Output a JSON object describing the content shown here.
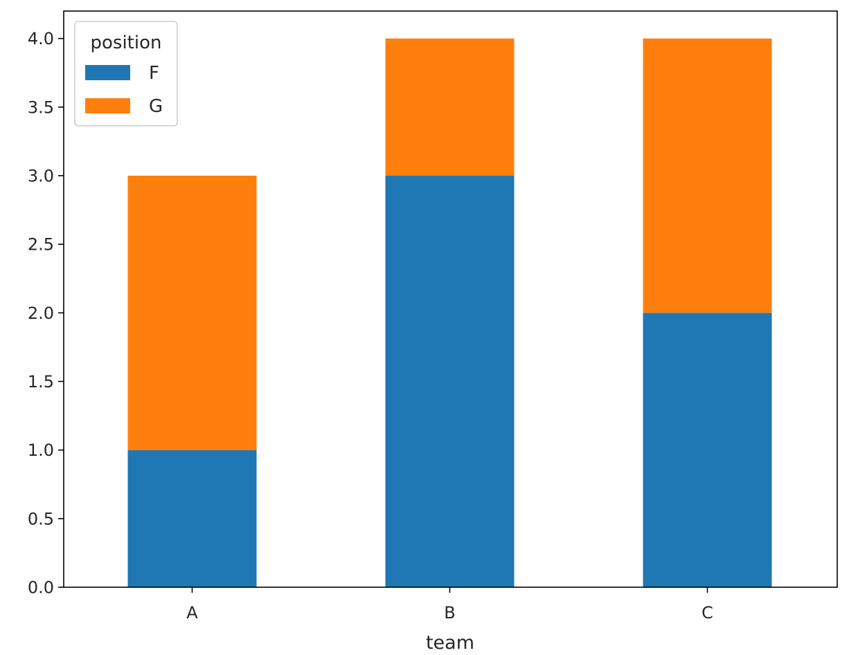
{
  "chart_data": {
    "type": "bar",
    "stacked": true,
    "categories": [
      "A",
      "B",
      "C"
    ],
    "series": [
      {
        "name": "F",
        "values": [
          1,
          3,
          2
        ],
        "color": "#1f77b4"
      },
      {
        "name": "G",
        "values": [
          2,
          1,
          2
        ],
        "color": "#ff7f0e"
      }
    ],
    "title": "",
    "xlabel": "team",
    "ylabel": "",
    "ylim": [
      0,
      4.2
    ],
    "yticks": [
      "0.0",
      "0.5",
      "1.0",
      "1.5",
      "2.0",
      "2.5",
      "3.0",
      "3.5",
      "4.0"
    ],
    "grid": false,
    "legend": {
      "title": "position",
      "placement": "top-left"
    }
  }
}
